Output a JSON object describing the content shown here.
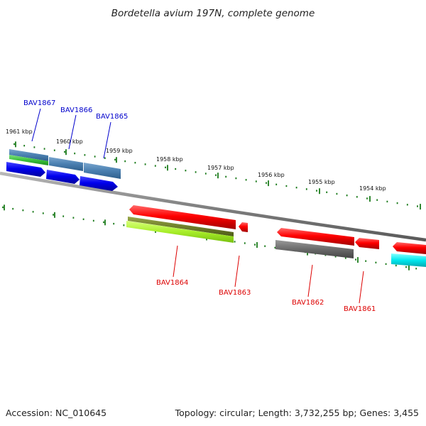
{
  "header": {
    "title": "Bordetella avium 197N, complete genome"
  },
  "footer": {
    "accession": "Accession: NC_010645",
    "summary": "Topology: circular; Length: 3,732,255 bp; Genes: 3,455"
  },
  "scale": {
    "labels": [
      "1961 kbp",
      "1960 kbp",
      "1959 kbp",
      "1958 kbp",
      "1957 kbp",
      "1956 kbp",
      "1955 kbp",
      "1954 kbp"
    ]
  },
  "colors": {
    "forward_label": "#0000cc",
    "reverse_label": "#dd0000",
    "tick": "#1a7a1a",
    "backbone": "#8a8a8a"
  },
  "genes": {
    "forward": [
      {
        "label": "BAV1867"
      },
      {
        "label": "BAV1866"
      },
      {
        "label": "BAV1865"
      }
    ],
    "reverse": [
      {
        "label": "BAV1864"
      },
      {
        "label": "BAV1863"
      },
      {
        "label": "BAV1862"
      },
      {
        "label": "BAV1861"
      }
    ]
  }
}
